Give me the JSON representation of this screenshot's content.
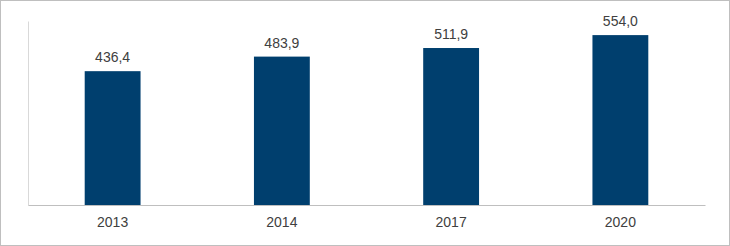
{
  "chart_data": {
    "type": "bar",
    "categories": [
      "2013",
      "2014",
      "2017",
      "2020"
    ],
    "values": [
      436.4,
      483.9,
      511.9,
      554.0
    ],
    "value_labels": [
      "436,4",
      "483,9",
      "511,9",
      "554,0"
    ],
    "color": "#003f6e",
    "ylim": [
      0,
      600
    ],
    "yticks": [],
    "grid": false,
    "data_labels": true,
    "tick_labels": "x"
  }
}
